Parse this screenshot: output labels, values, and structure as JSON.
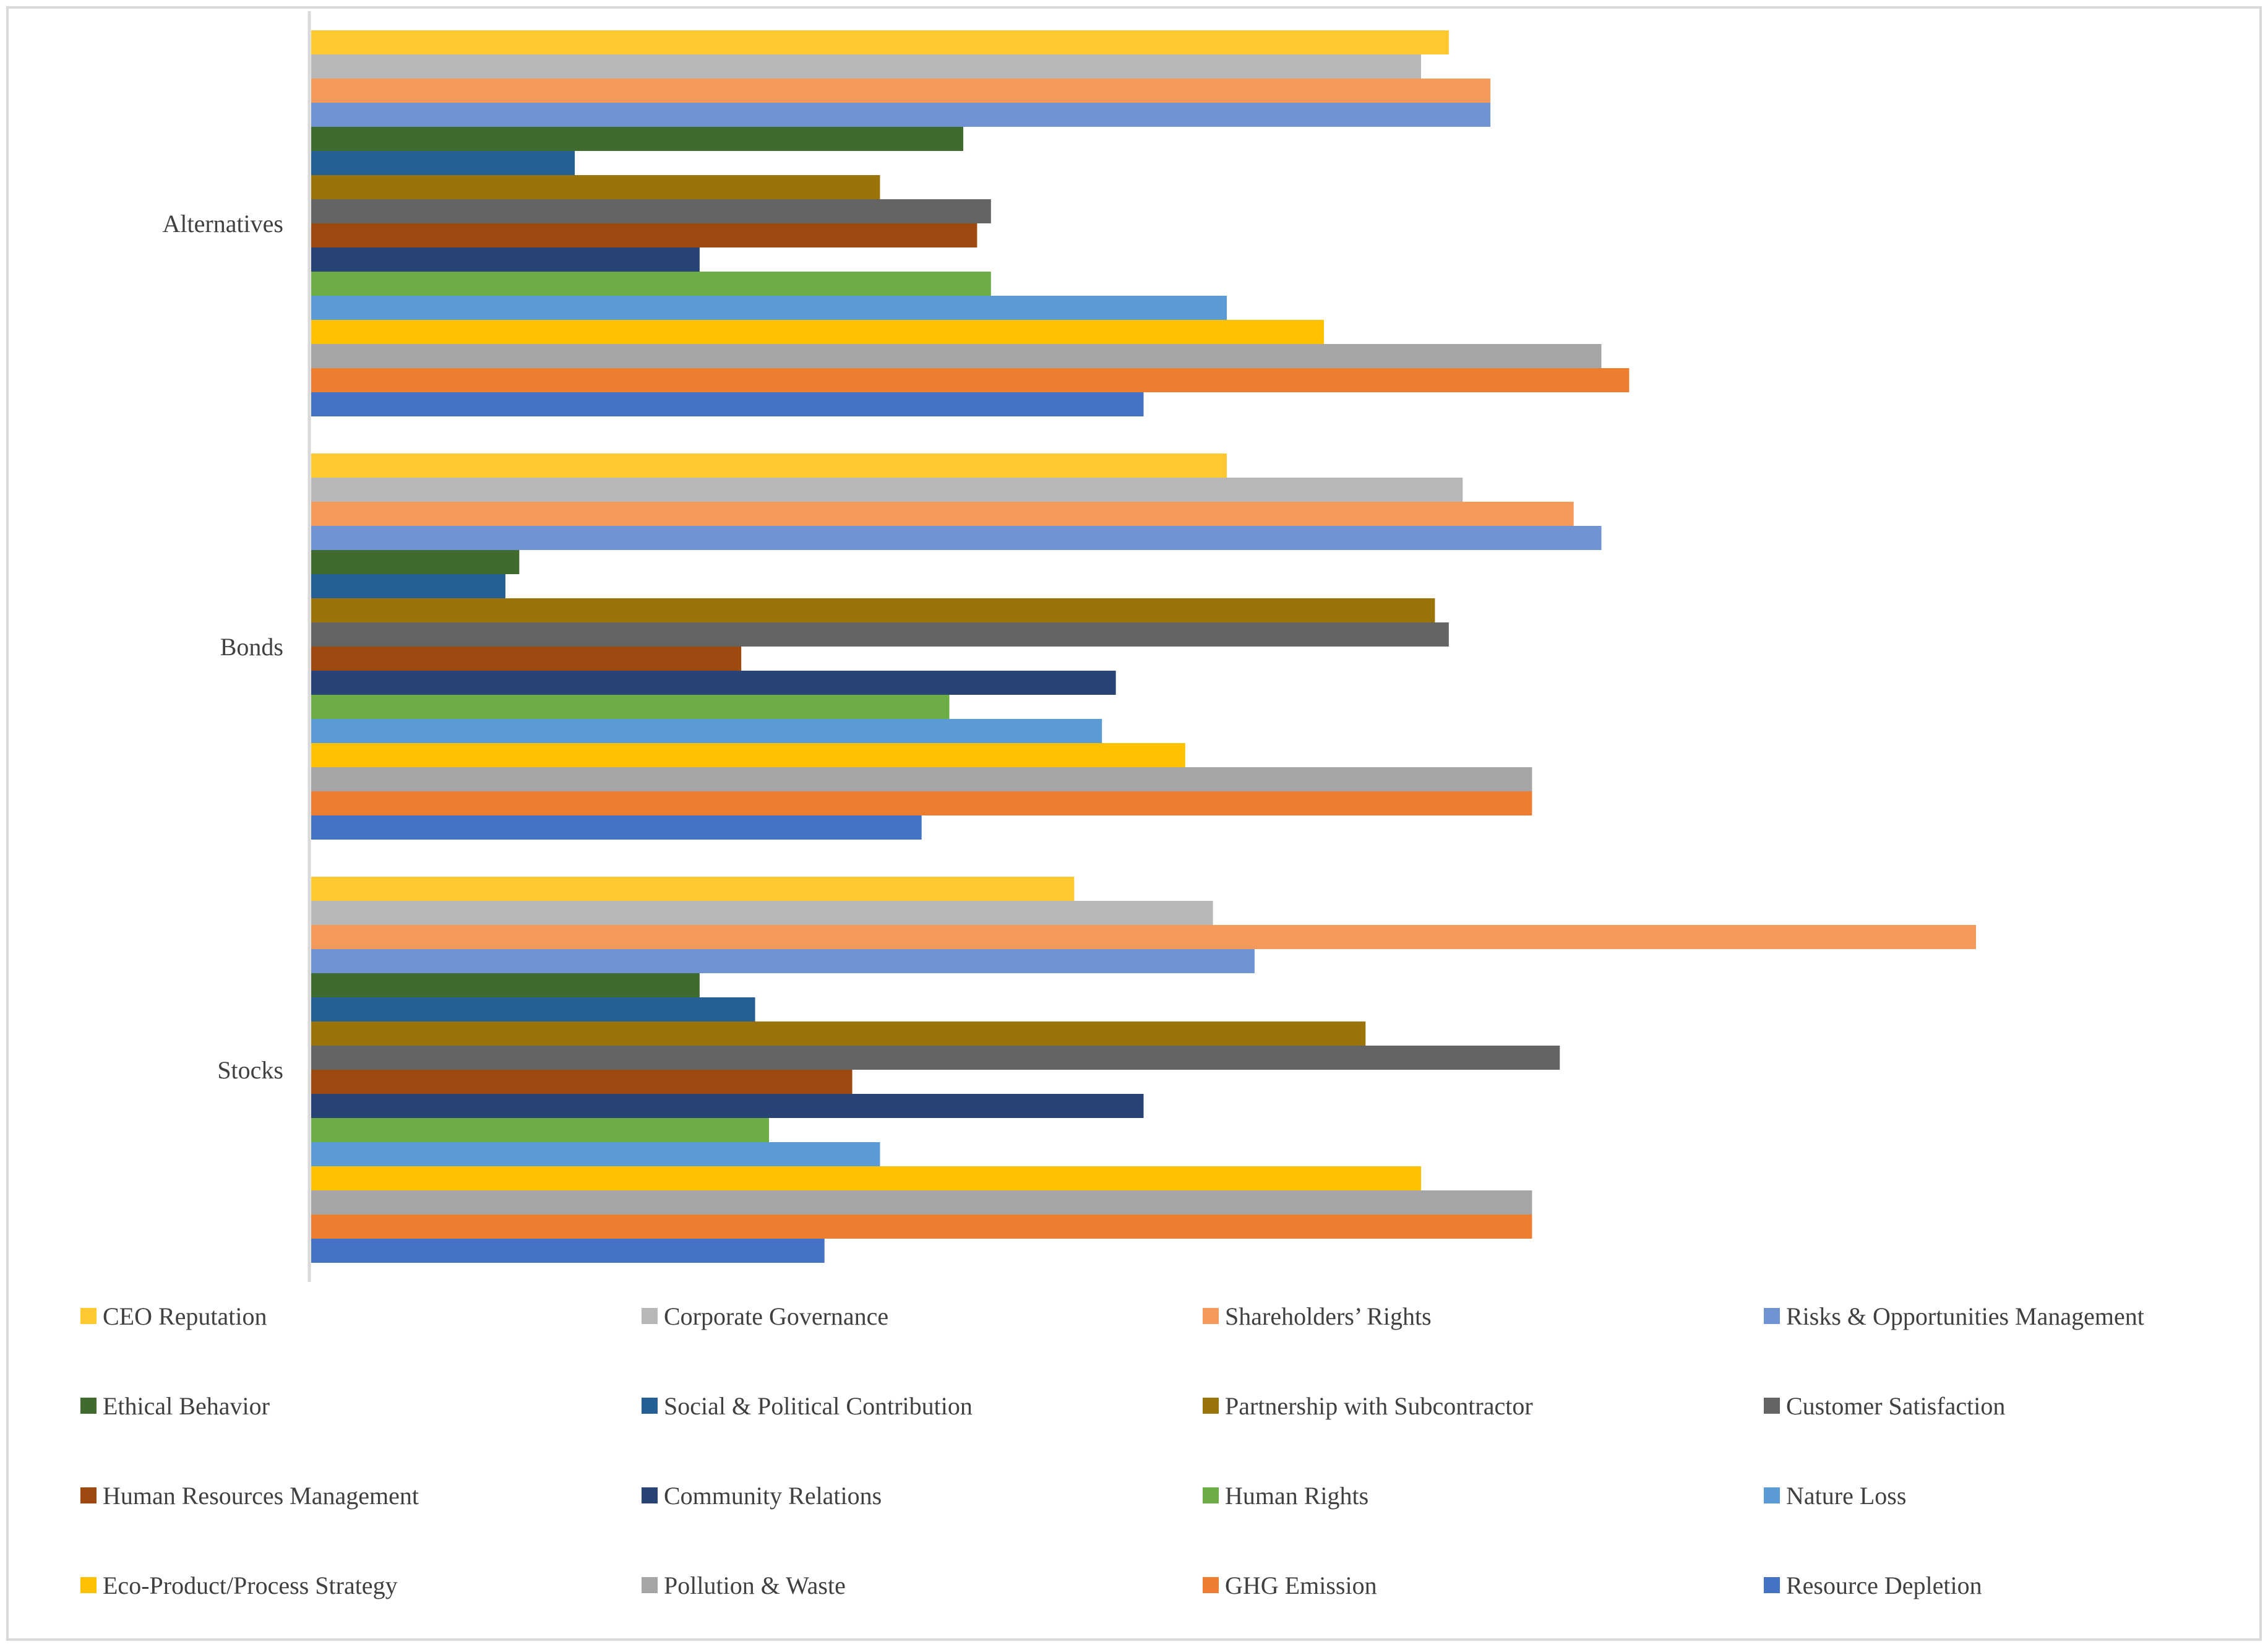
{
  "chart_data": {
    "type": "bar",
    "orientation": "horizontal",
    "title": "",
    "xlabel": "",
    "ylabel": "",
    "xlim": [
      0,
      120
    ],
    "grid": false,
    "legend_position": "bottom",
    "categories": [
      "Alternatives",
      "Bonds",
      "Stocks"
    ],
    "series": [
      {
        "name": "CEO Reputation",
        "color": "#FFC830",
        "values": [
          82,
          66,
          55
        ]
      },
      {
        "name": "Corporate Governance",
        "color": "#B7B7B7",
        "values": [
          80,
          83,
          65
        ]
      },
      {
        "name": "Shareholders’ Rights",
        "color": "#F39A5C",
        "values": [
          85,
          91,
          120
        ]
      },
      {
        "name": "Risks & Opportunities Management",
        "color": "#6F93D3",
        "values": [
          85,
          93,
          68
        ]
      },
      {
        "name": "Ethical Behavior",
        "color": "#416A2E",
        "values": [
          47,
          15,
          28
        ]
      },
      {
        "name": "Social & Political Contribution",
        "color": "#255F95",
        "values": [
          19,
          14,
          32
        ]
      },
      {
        "name": "Partnership with Subcontractor",
        "color": "#9B7409",
        "values": [
          41,
          81,
          76
        ]
      },
      {
        "name": "Customer Satisfaction",
        "color": "#646464",
        "values": [
          49,
          82,
          90
        ]
      },
      {
        "name": "Human Resources Management",
        "color": "#9E4910",
        "values": [
          48,
          31,
          39
        ]
      },
      {
        "name": "Community Relations",
        "color": "#284474",
        "values": [
          28,
          58,
          60
        ]
      },
      {
        "name": "Human Rights",
        "color": "#6DAD46",
        "values": [
          49,
          46,
          33
        ]
      },
      {
        "name": "Nature Loss",
        "color": "#5B9BD5",
        "values": [
          66,
          57,
          41
        ]
      },
      {
        "name": "Eco-Product/Process Strategy",
        "color": "#FFC000",
        "values": [
          73,
          63,
          80
        ]
      },
      {
        "name": "Pollution & Waste",
        "color": "#A5A5A5",
        "values": [
          93,
          88,
          88
        ]
      },
      {
        "name": "GHG Emission",
        "color": "#ED7D31",
        "values": [
          95,
          88,
          88
        ]
      },
      {
        "name": "Resource Depletion",
        "color": "#4472C4",
        "values": [
          60,
          44,
          37
        ]
      }
    ]
  }
}
